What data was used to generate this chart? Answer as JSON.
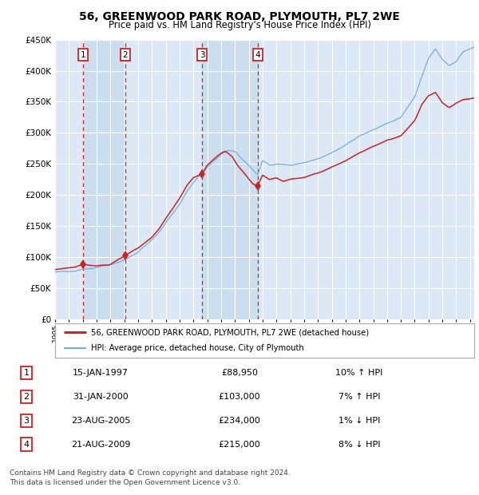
{
  "title": "56, GREENWOOD PARK ROAD, PLYMOUTH, PL7 2WE",
  "subtitle": "Price paid vs. HM Land Registry's House Price Index (HPI)",
  "background_color": "#ffffff",
  "plot_bg_color": "#dce8f5",
  "grid_color": "#ffffff",
  "hpi_line_color": "#7aaadd",
  "price_line_color": "#cc2222",
  "sale_marker_color": "#cc2222",
  "dashed_line_color": "#cc2222",
  "shade_bg_color": "#c8ddf0",
  "ylim": [
    0,
    450000
  ],
  "yticks": [
    0,
    50000,
    100000,
    150000,
    200000,
    250000,
    300000,
    350000,
    400000,
    450000
  ],
  "ytick_labels": [
    "£0",
    "£50K",
    "£100K",
    "£150K",
    "£200K",
    "£250K",
    "£300K",
    "£350K",
    "£400K",
    "£450K"
  ],
  "xlim_start": 1995.0,
  "xlim_end": 2025.3,
  "sales": [
    {
      "num": 1,
      "date": "15-JAN-1997",
      "year": 1997.04,
      "price": 88950,
      "pct": "10%",
      "dir": "↑"
    },
    {
      "num": 2,
      "date": "31-JAN-2000",
      "year": 2000.08,
      "price": 103000,
      "pct": "7%",
      "dir": "↑"
    },
    {
      "num": 3,
      "date": "23-AUG-2005",
      "year": 2005.64,
      "price": 234000,
      "pct": "1%",
      "dir": "↓"
    },
    {
      "num": 4,
      "date": "21-AUG-2009",
      "year": 2009.64,
      "price": 215000,
      "pct": "8%",
      "dir": "↓"
    }
  ],
  "legend_label_price": "56, GREENWOOD PARK ROAD, PLYMOUTH, PL7 2WE (detached house)",
  "legend_label_hpi": "HPI: Average price, detached house, City of Plymouth",
  "footnote": "Contains HM Land Registry data © Crown copyright and database right 2024.\nThis data is licensed under the Open Government Licence v3.0.",
  "table_rows": [
    {
      "num": 1,
      "date": "15-JAN-1997",
      "price": "£88,950",
      "info": "10% ↑ HPI"
    },
    {
      "num": 2,
      "date": "31-JAN-2000",
      "price": "£103,000",
      "info": "7% ↑ HPI"
    },
    {
      "num": 3,
      "date": "23-AUG-2005",
      "price": "£234,000",
      "info": "1% ↓ HPI"
    },
    {
      "num": 4,
      "date": "21-AUG-2009",
      "price": "£215,000",
      "info": "8% ↓ HPI"
    }
  ]
}
